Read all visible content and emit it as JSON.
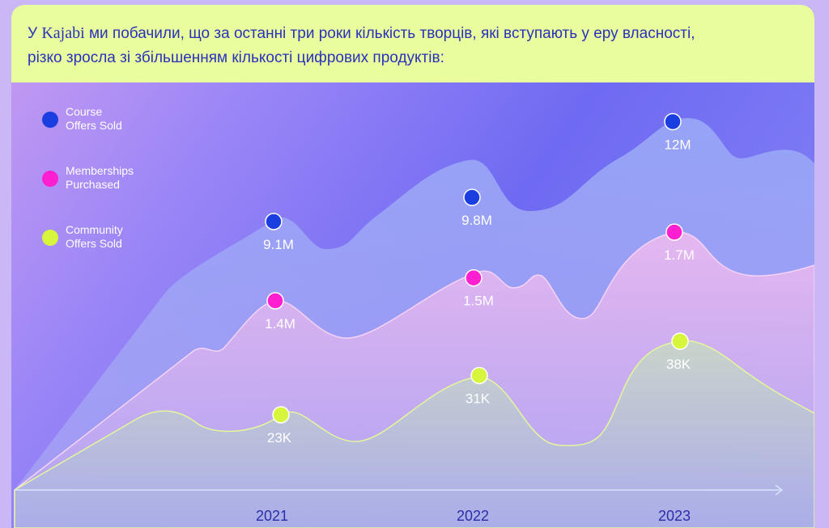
{
  "header": {
    "line1_prefix": "У ",
    "brand": "Kajabi",
    "line1_suffix": " ми побачили, що за останні три роки кількість творців, які вступають у еру власності,",
    "line2": "різко зросла зі збільшенням кількості цифрових продуктів:"
  },
  "chart_data": {
    "type": "area",
    "categories": [
      "2021",
      "2022",
      "2023"
    ],
    "series": [
      {
        "name": "Course Offers Sold",
        "values": [
          9.1,
          9.8,
          12
        ],
        "labels": [
          "9.1M",
          "9.8M",
          "12M"
        ],
        "color": "#1a3ee0"
      },
      {
        "name": "Memberships Purchased",
        "values": [
          1.4,
          1.5,
          1.7
        ],
        "labels": [
          "1.4M",
          "1.5M",
          "1.7M"
        ],
        "color": "#ff1fd0"
      },
      {
        "name": "Community Offers Sold",
        "values": [
          23,
          31,
          38
        ],
        "labels": [
          "23K",
          "31K",
          "38K"
        ],
        "color": "#d6f53c"
      }
    ],
    "legend_position": "top-left",
    "grid": false
  },
  "legend": [
    {
      "line1": "Course",
      "line2": "Offers Sold",
      "color": "#1a3ee0"
    },
    {
      "line1": "Memberships",
      "line2": "Purchased",
      "color": "#ff1fd0"
    },
    {
      "line1": "Community",
      "line2": "Offers Sold",
      "color": "#d6f53c"
    }
  ]
}
